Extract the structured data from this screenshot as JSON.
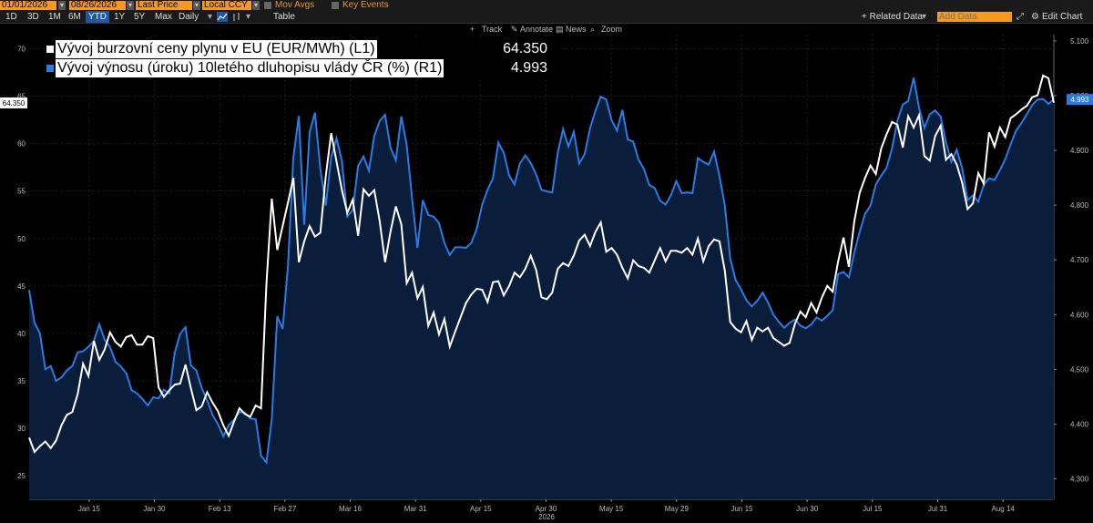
{
  "toolbar": {
    "start_date": "01/01/2026",
    "end_date": "08/26/2026",
    "price_field": "Last Price",
    "currency": "Local CCY",
    "mov_avgs": "Mov Avgs",
    "key_events": "Key Events",
    "periods": [
      "1D",
      "3D",
      "1M",
      "6M",
      "YTD",
      "1Y",
      "5Y",
      "Max"
    ],
    "active_period": "YTD",
    "frequency": "Daily",
    "table": "Table",
    "related_data": "+ Related Data",
    "add_data_placeholder": "Add Data",
    "edit_chart": "Edit Chart"
  },
  "chartbar": {
    "track": "Track",
    "annotate": "Annotate",
    "news": "News",
    "zoom": "Zoom"
  },
  "colors": {
    "gas": "#ffffff",
    "bond": "#2a7be4",
    "fill": "#0b1f3d",
    "accent": "#f59a1c"
  },
  "chart_data": {
    "type": "line",
    "x_year_label": "2026",
    "x_ticks": [
      "Jan 15",
      "Jan 30",
      "Feb 13",
      "Feb 27",
      "Mar 16",
      "Mar 31",
      "Apr 15",
      "Apr 30",
      "May 15",
      "May 29",
      "Jun 15",
      "Jun 30",
      "Jul 15",
      "Jul 31",
      "Aug 14"
    ],
    "left_axis": {
      "ylim": [
        22.5,
        71.5
      ],
      "ticks": [
        "25",
        "30",
        "35",
        "40",
        "45",
        "50",
        "55",
        "60",
        "65",
        "70"
      ]
    },
    "right_axis": {
      "ylim": [
        4.2625,
        5.1115
      ],
      "ticks": [
        "4.300",
        "4.400",
        "4.500",
        "4.600",
        "4.700",
        "4.800",
        "4.900",
        "5.000",
        "5.100"
      ]
    },
    "grid": true,
    "legend_position": "top-left",
    "series": [
      {
        "name": "Vývoj burzovní ceny plynu v EU (EUR/MWh) (L1)",
        "axis": "left",
        "last_value": "64.350",
        "values": [
          29.0,
          27.5,
          28.1,
          28.6,
          27.9,
          28.7,
          30.3,
          31.4,
          31.7,
          33.6,
          36.8,
          35.5,
          39.2,
          37.2,
          38.3,
          40.1,
          39.1,
          38.6,
          39.6,
          39.8,
          38.8,
          38.8,
          39.7,
          39.5,
          34.3,
          33.3,
          34.0,
          34.6,
          34.7,
          36.7,
          34.2,
          31.9,
          32.3,
          33.8,
          32.7,
          31.8,
          30.3,
          29.2,
          30.7,
          32.1,
          31.5,
          31.2,
          32.4,
          32.1,
          45.2,
          54.2,
          48.8,
          51.3,
          53.8,
          56.4,
          47.5,
          49.7,
          51.3,
          50.2,
          50.6,
          56.6,
          61.1,
          58.1,
          55.1,
          52.7,
          54.1,
          50.3,
          55.2,
          54.5,
          55.1,
          51.8,
          47.5,
          50.7,
          53.4,
          51.5,
          45.3,
          46.4,
          43.7,
          44.9,
          40.8,
          42.2,
          39.9,
          41.5,
          38.6,
          40.2,
          41.7,
          43.2,
          44.1,
          44.7,
          44.6,
          43.3,
          45.4,
          45.5,
          44.0,
          45.0,
          46.4,
          45.9,
          46.8,
          48.2,
          46.7,
          43.8,
          43.6,
          44.3,
          46.8,
          47.4,
          47.1,
          48.2,
          49.8,
          50.4,
          49.2,
          50.7,
          51.7,
          48.6,
          49.0,
          48.3,
          46.9,
          45.8,
          47.7,
          47.1,
          46.9,
          46.4,
          47.7,
          49.0,
          47.6,
          48.7,
          48.7,
          48.5,
          49.0,
          48.3,
          50.0,
          47.6,
          49.2,
          49.9,
          49.7,
          46.6,
          41.2,
          40.5,
          40.1,
          41.3,
          39.3,
          40.6,
          40.2,
          40.6,
          39.5,
          39.1,
          38.7,
          39.0,
          41.0,
          42.3,
          41.7,
          43.2,
          42.2,
          43.8,
          45.0,
          44.4,
          47.6,
          50.1,
          47.0,
          51.8,
          54.8,
          56.4,
          57.7,
          56.8,
          59.5,
          61.0,
          62.3,
          62.0,
          59.6,
          62.9,
          61.7,
          63.0,
          58.7,
          58.2,
          60.8,
          61.9,
          58.3,
          58.9,
          57.8,
          55.9,
          53.1,
          53.7,
          56.9,
          55.8,
          61.2,
          59.7,
          61.7,
          60.7,
          62.7,
          63.1,
          63.6,
          64.0,
          64.9,
          65.1,
          67.2,
          66.9,
          64.3
        ]
      },
      {
        "name": "Vývoj výnosu (úroku) 10letého dluhopisu vlády ČR (%) (R1)",
        "axis": "right",
        "last_value": "4.993",
        "values": [
          4.645,
          4.585,
          4.566,
          4.5,
          4.506,
          4.479,
          4.485,
          4.498,
          4.506,
          4.531,
          4.533,
          4.541,
          4.552,
          4.582,
          4.554,
          4.541,
          4.514,
          4.505,
          4.493,
          4.462,
          4.456,
          4.446,
          4.434,
          4.449,
          4.447,
          4.463,
          4.456,
          4.531,
          4.565,
          4.577,
          4.507,
          4.498,
          4.466,
          4.444,
          4.417,
          4.4,
          4.378,
          4.398,
          4.408,
          4.422,
          4.421,
          4.41,
          4.409,
          4.342,
          4.33,
          4.409,
          4.597,
          4.574,
          4.69,
          4.887,
          4.963,
          4.764,
          4.933,
          4.969,
          4.866,
          4.799,
          4.888,
          4.922,
          4.881,
          4.779,
          4.791,
          4.872,
          4.889,
          4.863,
          4.926,
          4.954,
          4.965,
          4.905,
          4.882,
          4.962,
          4.91,
          4.813,
          4.722,
          4.809,
          4.782,
          4.779,
          4.767,
          4.731,
          4.709,
          4.723,
          4.723,
          4.722,
          4.731,
          4.757,
          4.801,
          4.828,
          4.849,
          4.914,
          4.896,
          4.854,
          4.838,
          4.876,
          4.891,
          4.877,
          4.856,
          4.828,
          4.825,
          4.823,
          4.895,
          4.939,
          4.907,
          4.934,
          4.876,
          4.893,
          4.94,
          4.972,
          4.998,
          4.993,
          4.955,
          4.936,
          4.974,
          4.92,
          4.916,
          4.883,
          4.866,
          4.837,
          4.831,
          4.808,
          4.801,
          4.818,
          4.844,
          4.822,
          4.823,
          4.822,
          4.886,
          4.879,
          4.874,
          4.898,
          4.853,
          4.799,
          4.702,
          4.663,
          4.646,
          4.626,
          4.615,
          4.625,
          4.64,
          4.622,
          4.6,
          4.587,
          4.576,
          4.585,
          4.591,
          4.58,
          4.575,
          4.582,
          4.595,
          4.589,
          4.598,
          4.608,
          4.674,
          4.678,
          4.668,
          4.713,
          4.751,
          4.784,
          4.799,
          4.838,
          4.854,
          4.868,
          4.904,
          4.954,
          4.984,
          4.99,
          5.033,
          4.978,
          4.941,
          4.966,
          4.973,
          4.962,
          4.915,
          4.879,
          4.901,
          4.868,
          4.809,
          4.818,
          4.806,
          4.837,
          4.849,
          4.846,
          4.864,
          4.884,
          4.911,
          4.936,
          4.95,
          4.966,
          4.983,
          4.993,
          4.994,
          4.985,
          4.993
        ]
      }
    ]
  }
}
